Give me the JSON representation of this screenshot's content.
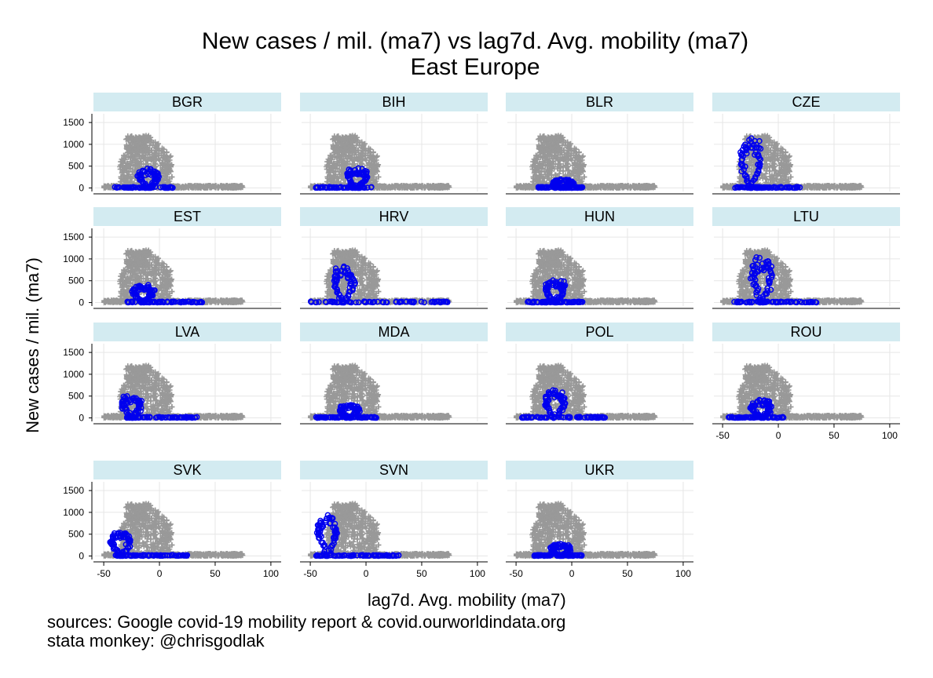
{
  "chart_data": {
    "type": "scatter",
    "title": "New cases / mil. (ma7) vs lag7d. Avg. mobility (ma7)",
    "subtitle": "East Europe",
    "xlabel": "lag7d. Avg. mobility (ma7)",
    "ylabel": "New cases / mil. (ma7)",
    "xlim": [
      -55,
      105
    ],
    "ylim": [
      -80,
      1700
    ],
    "x_ticks": [
      "-50",
      "0",
      "50",
      "100"
    ],
    "y_ticks": [
      "0",
      "500",
      "1000",
      "1500"
    ],
    "grid": true,
    "layout": {
      "columns": 4,
      "rows": 4
    },
    "background_series": {
      "marker": "plus",
      "color": "#999999"
    },
    "highlight_series": {
      "marker": "circle-open",
      "color": "#0000ee"
    },
    "panels": [
      {
        "label": "BGR",
        "peak_x": -10,
        "peak_y": 450,
        "x_min": -40,
        "x_max": 15
      },
      {
        "label": "BIH",
        "peak_x": -8,
        "peak_y": 470,
        "x_min": -45,
        "x_max": 5
      },
      {
        "label": "BLR",
        "peak_x": -8,
        "peak_y": 200,
        "x_min": -30,
        "x_max": 10
      },
      {
        "label": "CZE",
        "peak_x": -25,
        "peak_y": 1200,
        "x_min": -40,
        "x_max": 20
      },
      {
        "label": "EST",
        "peak_x": -15,
        "peak_y": 420,
        "x_min": -30,
        "x_max": 40
      },
      {
        "label": "HRV",
        "peak_x": -20,
        "peak_y": 850,
        "x_min": -50,
        "x_max": 75
      },
      {
        "label": "HUN",
        "peak_x": -15,
        "peak_y": 550,
        "x_min": -40,
        "x_max": 10
      },
      {
        "label": "LTU",
        "peak_x": -15,
        "peak_y": 1100,
        "x_min": -40,
        "x_max": 35
      },
      {
        "label": "LVA",
        "peak_x": -25,
        "peak_y": 530,
        "x_min": -30,
        "x_max": 35
      },
      {
        "label": "MDA",
        "peak_x": -15,
        "peak_y": 300,
        "x_min": -45,
        "x_max": 10
      },
      {
        "label": "POL",
        "peak_x": -15,
        "peak_y": 650,
        "x_min": -45,
        "x_max": 30
      },
      {
        "label": "ROU",
        "peak_x": -15,
        "peak_y": 430,
        "x_min": -45,
        "x_max": 5
      },
      {
        "label": "SVK",
        "peak_x": -35,
        "peak_y": 580,
        "x_min": -40,
        "x_max": 25
      },
      {
        "label": "SVN",
        "peak_x": -35,
        "peak_y": 950,
        "x_min": -45,
        "x_max": 30
      },
      {
        "label": "UKR",
        "peak_x": -10,
        "peak_y": 280,
        "x_min": -35,
        "x_max": 10
      }
    ]
  },
  "notes": {
    "line1": "sources: Google covid-19 mobility report & covid.ourworldindata.org",
    "line2": "stata monkey: @chrisgodlak"
  }
}
